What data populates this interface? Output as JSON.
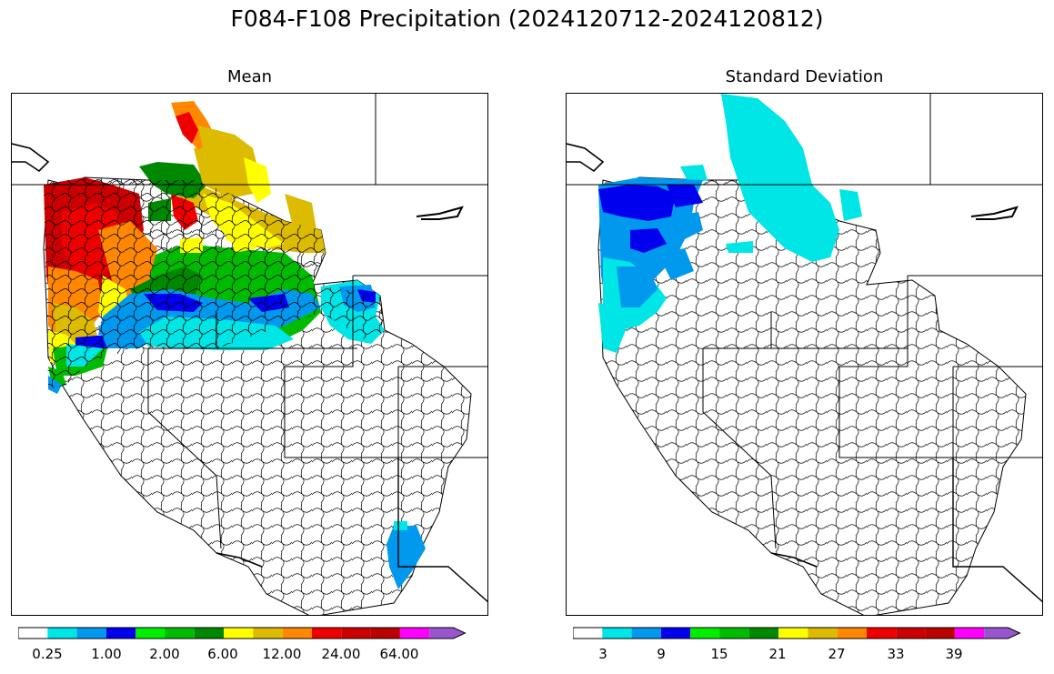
{
  "title": "F084-F108 Precipitation (2024120712-2024120812)",
  "panels": [
    {
      "title": "Mean",
      "colorbar": {
        "colors": [
          "#ffffff",
          "#00e5e5",
          "#0099ee",
          "#0000ee",
          "#00ee00",
          "#00bb00",
          "#008800",
          "#ffff00",
          "#ddbb00",
          "#ff8800",
          "#ee0000",
          "#cc0000",
          "#bb0000",
          "#ff00ff",
          "#9955cc"
        ],
        "tick_labels": [
          "0.25",
          "1.00",
          "2.00",
          "6.00",
          "12.00",
          "24.00",
          "64.00"
        ]
      }
    },
    {
      "title": "Standard Deviation",
      "colorbar": {
        "colors": [
          "#ffffff",
          "#00e5e5",
          "#0099ee",
          "#0000ee",
          "#00ee00",
          "#00bb00",
          "#008800",
          "#ffff00",
          "#ddbb00",
          "#ff8800",
          "#ee0000",
          "#cc0000",
          "#bb0000",
          "#ff00ff",
          "#9955cc"
        ],
        "tick_labels": [
          "3",
          "9",
          "15",
          "21",
          "27",
          "33",
          "39"
        ]
      }
    }
  ]
}
